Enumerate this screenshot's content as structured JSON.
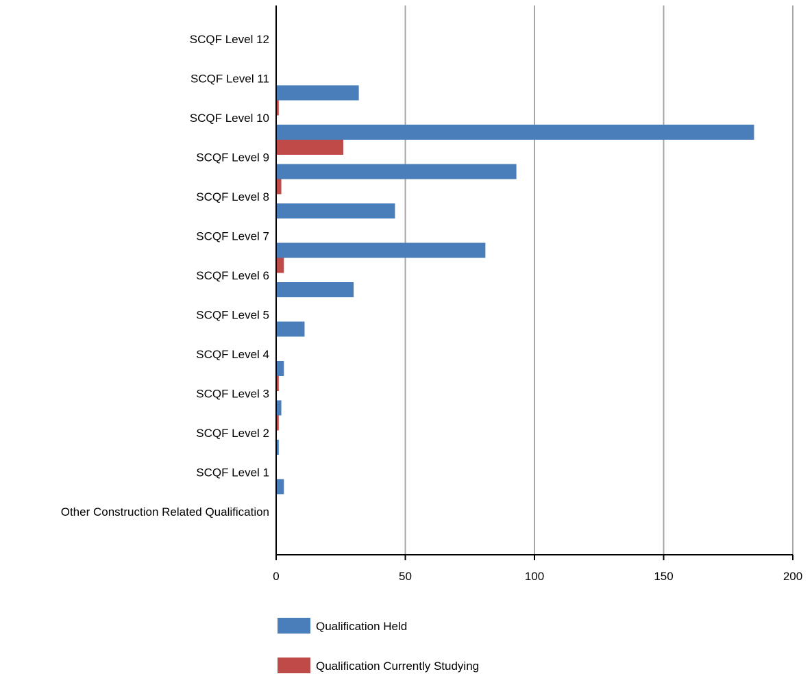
{
  "chart_data": {
    "type": "bar",
    "orientation": "horizontal",
    "categories": [
      "SCQF Level 12",
      "SCQF Level 11",
      "SCQF Level 10",
      "SCQF Level 9",
      "SCQF Level 8",
      "SCQF Level 7",
      "SCQF Level 6",
      "SCQF Level 5",
      "SCQF Level 4",
      "SCQF Level 3",
      "SCQF Level 2",
      "SCQF Level 1",
      "Other Construction Related Qualification"
    ],
    "series": [
      {
        "name": "Qualification Held",
        "color": "#4a7ebb",
        "values": [
          0,
          32,
          185,
          93,
          46,
          81,
          30,
          11,
          3,
          2,
          1,
          3,
          0
        ]
      },
      {
        "name": "Qualification Currently Studying",
        "color": "#be4b48",
        "values": [
          0,
          1,
          26,
          2,
          0,
          3,
          0,
          0,
          1,
          1,
          0,
          0,
          0
        ]
      }
    ],
    "xlim": [
      0,
      200
    ],
    "xticks": [
      "0",
      "50",
      "100",
      "150",
      "200"
    ],
    "grid": true,
    "legend_position": "bottom",
    "title": "",
    "xlabel": "",
    "ylabel": ""
  }
}
